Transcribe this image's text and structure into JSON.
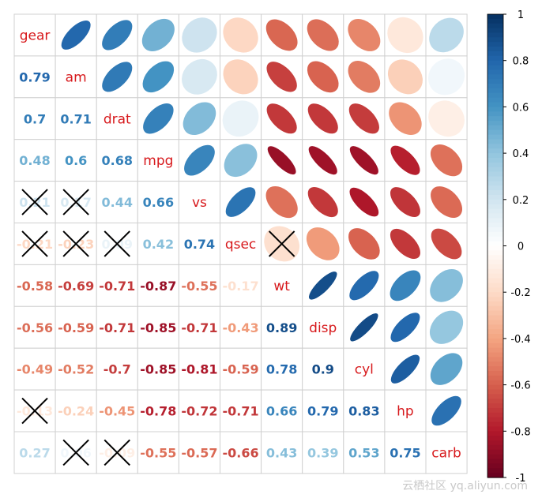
{
  "chart_data": {
    "type": "heatmap",
    "variables": [
      "gear",
      "am",
      "drat",
      "mpg",
      "vs",
      "qsec",
      "wt",
      "disp",
      "cyl",
      "hp",
      "carb"
    ],
    "correlations": [
      [
        1,
        0.79,
        0.7,
        0.48,
        0.21,
        -0.21,
        -0.58,
        -0.56,
        -0.49,
        -0.13,
        0.27
      ],
      [
        0.79,
        1,
        0.71,
        0.6,
        0.17,
        -0.23,
        -0.69,
        -0.59,
        -0.52,
        -0.24,
        0.06
      ],
      [
        0.7,
        0.71,
        1,
        0.68,
        0.44,
        0.09,
        -0.71,
        -0.71,
        -0.7,
        -0.45,
        -0.09
      ],
      [
        0.48,
        0.6,
        0.68,
        1,
        0.66,
        0.42,
        -0.87,
        -0.85,
        -0.85,
        -0.78,
        -0.55
      ],
      [
        0.21,
        0.17,
        0.44,
        0.66,
        1,
        0.74,
        -0.55,
        -0.71,
        -0.81,
        -0.72,
        -0.57
      ],
      [
        -0.21,
        -0.23,
        0.09,
        0.42,
        0.74,
        1,
        -0.17,
        -0.43,
        -0.59,
        -0.71,
        -0.66
      ],
      [
        -0.58,
        -0.69,
        -0.71,
        -0.87,
        -0.55,
        -0.17,
        1,
        0.89,
        0.78,
        0.66,
        0.43
      ],
      [
        -0.56,
        -0.59,
        -0.71,
        -0.85,
        -0.71,
        -0.43,
        0.89,
        1,
        0.9,
        0.79,
        0.39
      ],
      [
        -0.49,
        -0.52,
        -0.7,
        -0.85,
        -0.81,
        -0.59,
        0.78,
        0.9,
        1,
        0.83,
        0.53
      ],
      [
        -0.13,
        -0.24,
        -0.45,
        -0.78,
        -0.72,
        -0.71,
        0.66,
        0.79,
        0.83,
        1,
        0.75
      ],
      [
        0.27,
        0.06,
        -0.09,
        -0.55,
        -0.57,
        -0.66,
        0.43,
        0.39,
        0.53,
        0.75,
        1
      ]
    ],
    "insignificant": [
      [
        4,
        0
      ],
      [
        4,
        1
      ],
      [
        5,
        0
      ],
      [
        5,
        1
      ],
      [
        5,
        2
      ],
      [
        5,
        6
      ],
      [
        9,
        0
      ],
      [
        10,
        1
      ],
      [
        10,
        2
      ]
    ],
    "lower_display": "number",
    "upper_display": "ellipse",
    "diagonal_display": "label",
    "insignificant_marker": "cross",
    "colorbar": {
      "range": [
        -1,
        1
      ],
      "ticks": [
        1,
        0.8,
        0.6,
        0.4,
        0.2,
        0,
        -0.2,
        -0.4,
        -0.6,
        -0.8,
        -1
      ],
      "tick_labels": [
        "1",
        "0.8",
        "0.6",
        "0.4",
        "0.2",
        "0",
        "-0.2",
        "-0.4",
        "-0.6",
        "-0.8",
        "-1"
      ],
      "placement": "right"
    },
    "palette": [
      "#67001F",
      "#B2182B",
      "#D6604D",
      "#F4A582",
      "#FDDBC7",
      "#FFFFFF",
      "#D1E5F0",
      "#92C5DE",
      "#4393C3",
      "#2166AC",
      "#053061"
    ],
    "label_color": "#D7191C",
    "grid": true
  },
  "watermark": "云栖社区 yq.aliyun.com"
}
